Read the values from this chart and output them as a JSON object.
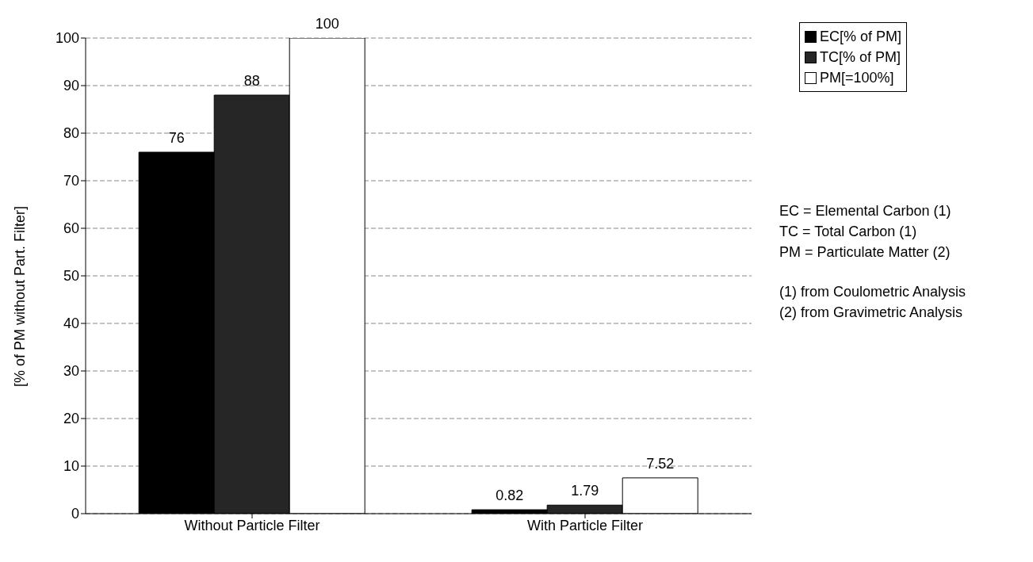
{
  "chart_data": {
    "type": "bar",
    "categories": [
      "Without Particle Filter",
      "With Particle Filter"
    ],
    "series": [
      {
        "name": "EC[% of PM]",
        "color": "#000000",
        "values": [
          76,
          0.82
        ]
      },
      {
        "name": "TC[% of PM]",
        "color": "#262626",
        "values": [
          88,
          1.79
        ]
      },
      {
        "name": "PM[=100%]",
        "color": "#ffffff",
        "values": [
          100,
          7.52
        ]
      }
    ],
    "ylabel": "[% of PM without Part. Filter]",
    "ylim": [
      0,
      100
    ],
    "yticks": [
      0,
      10,
      20,
      30,
      40,
      50,
      60,
      70,
      80,
      90,
      100
    ],
    "grid": "y",
    "legend": "top right",
    "data_labels": true,
    "annotations": [
      "EC = Elemental Carbon (1)",
      "TC = Total Carbon (1)",
      "PM = Particulate Matter (2)",
      "(1) from Coulometric Analysis",
      "(2) from Gravimetric Analysis"
    ]
  }
}
